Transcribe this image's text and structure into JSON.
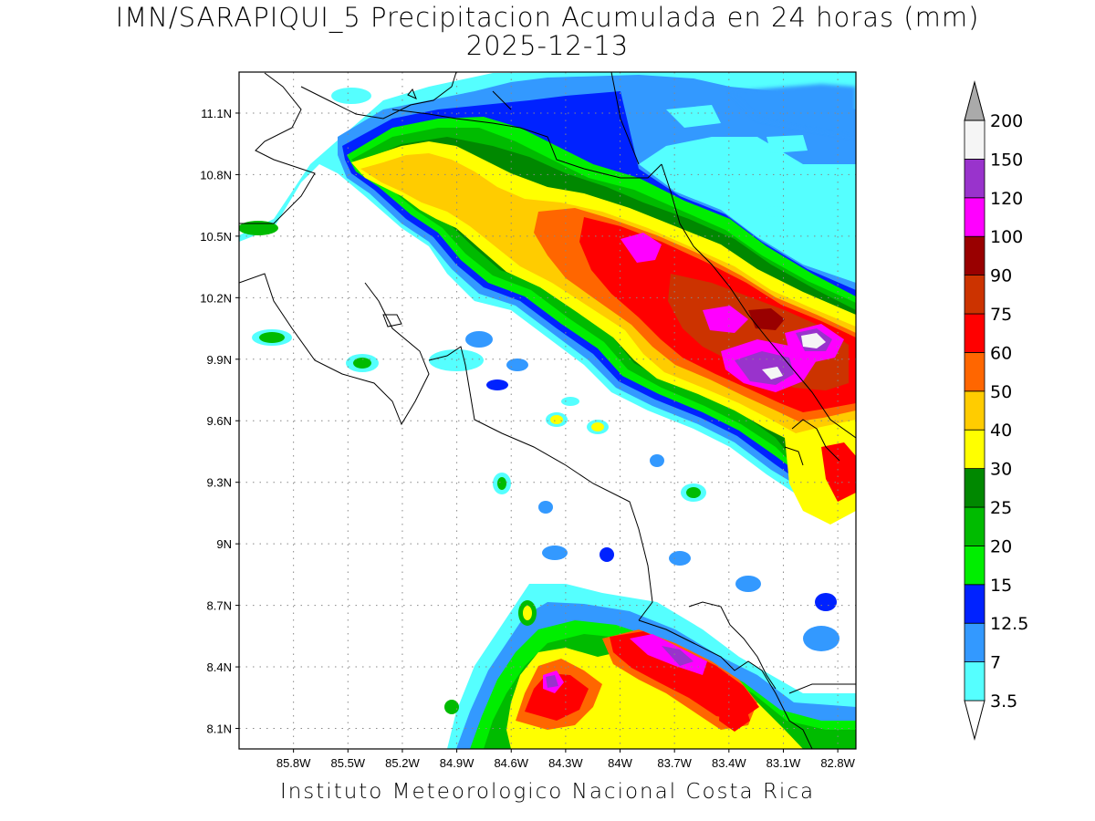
{
  "title": {
    "line1": "IMN/SARAPIQUI_5 Precipitacion Acumulada en 24 horas (mm)",
    "line2": "2025-12-13"
  },
  "footer": "Instituto Meteorologico Nacional Costa Rica",
  "map": {
    "lon_range": [
      -86.1,
      -82.7
    ],
    "lat_range": [
      8.0,
      11.3
    ],
    "lat_ticks": [
      {
        "value": 11.1,
        "label": "11.1N"
      },
      {
        "value": 10.8,
        "label": "10.8N"
      },
      {
        "value": 10.5,
        "label": "10.5N"
      },
      {
        "value": 10.2,
        "label": "10.2N"
      },
      {
        "value": 9.9,
        "label": "9.9N"
      },
      {
        "value": 9.6,
        "label": "9.6N"
      },
      {
        "value": 9.3,
        "label": "9.3N"
      },
      {
        "value": 9.0,
        "label": "9N"
      },
      {
        "value": 8.7,
        "label": "8.7N"
      },
      {
        "value": 8.4,
        "label": "8.4N"
      },
      {
        "value": 8.1,
        "label": "8.1N"
      }
    ],
    "lon_ticks": [
      {
        "value": -85.8,
        "label": "85.8W"
      },
      {
        "value": -85.5,
        "label": "85.5W"
      },
      {
        "value": -85.2,
        "label": "85.2W"
      },
      {
        "value": -84.9,
        "label": "84.9W"
      },
      {
        "value": -84.6,
        "label": "84.6W"
      },
      {
        "value": -84.3,
        "label": "84.3W"
      },
      {
        "value": -84.0,
        "label": "84W"
      },
      {
        "value": -83.7,
        "label": "83.7W"
      },
      {
        "value": -83.4,
        "label": "83.4W"
      },
      {
        "value": -83.1,
        "label": "83.1W"
      },
      {
        "value": -82.8,
        "label": "82.8W"
      }
    ],
    "grid": "dotted"
  },
  "colorbar": {
    "levels": [
      {
        "label": "3.5",
        "color": "#55ffff"
      },
      {
        "label": "7",
        "color": "#3399ff"
      },
      {
        "label": "12.5",
        "color": "#0022ff"
      },
      {
        "label": "15",
        "color": "#00ee00"
      },
      {
        "label": "20",
        "color": "#00bb00"
      },
      {
        "label": "25",
        "color": "#008800"
      },
      {
        "label": "30",
        "color": "#ffff00"
      },
      {
        "label": "40",
        "color": "#ffcc00"
      },
      {
        "label": "50",
        "color": "#ff6600"
      },
      {
        "label": "60",
        "color": "#ff0000"
      },
      {
        "label": "75",
        "color": "#cc3300"
      },
      {
        "label": "90",
        "color": "#990000"
      },
      {
        "label": "100",
        "color": "#ff00ff"
      },
      {
        "label": "120",
        "color": "#9933cc"
      },
      {
        "label": "150",
        "color": "#f5f5f5"
      },
      {
        "label": "200",
        "color": "#aaaaaa"
      }
    ]
  }
}
